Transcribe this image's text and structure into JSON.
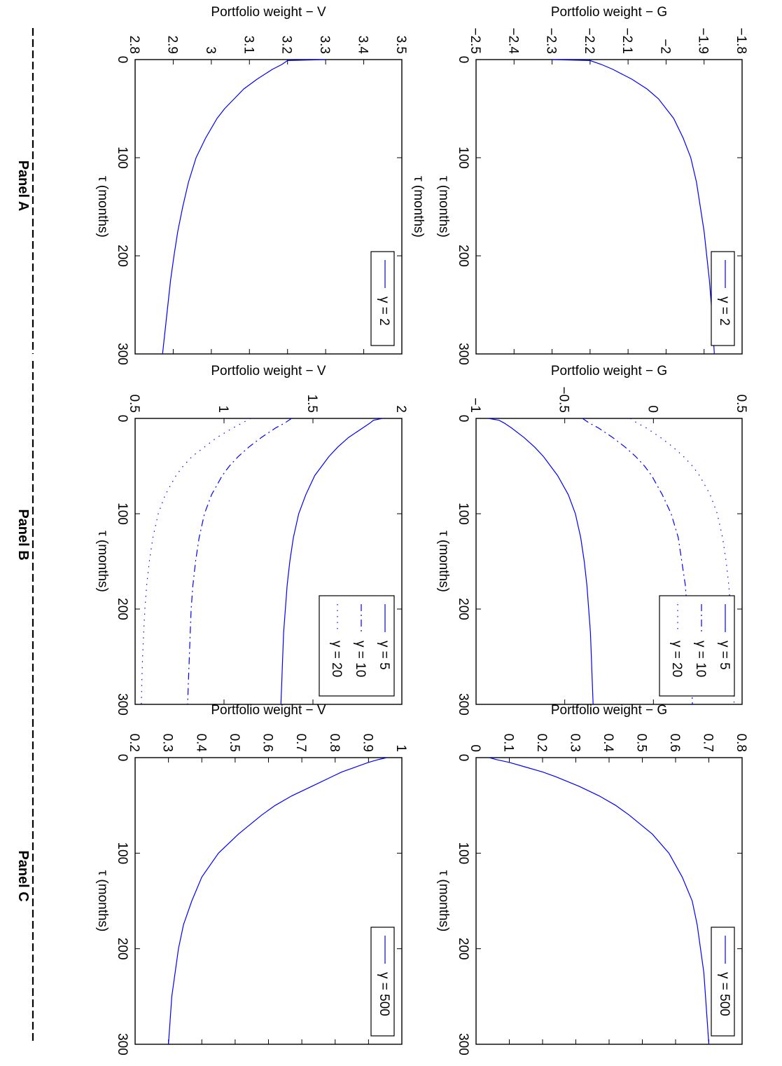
{
  "panel_titles": [
    "Panel A",
    "Panel B",
    "Panel C"
  ],
  "line_color": "#0000ff",
  "chart_data": [
    {
      "id": "A-G",
      "panel": "Panel A",
      "type": "line",
      "xlabel": "τ (months)",
      "ylabel": "Portfolio weight − G",
      "xlim": [
        0,
        300
      ],
      "ylim": [
        -2.5,
        -1.8
      ],
      "xticks": [
        "0",
        "100",
        "200",
        "300"
      ],
      "yticks": [
        "−2.5",
        "−2.4",
        "−2.3",
        "−2.2",
        "−2.1",
        "−2",
        "−1.9",
        "−1.8"
      ],
      "grid": false,
      "legend_position": "top-right",
      "series": [
        {
          "name": "γ = 2",
          "style": "solid",
          "x": [
            0,
            1,
            5,
            10,
            20,
            30,
            40,
            50,
            60,
            80,
            100,
            125,
            150,
            175,
            200,
            225,
            250,
            275,
            300
          ],
          "y": [
            -2.3,
            -2.2,
            -2.17,
            -2.14,
            -2.09,
            -2.05,
            -2.02,
            -2.0,
            -1.98,
            -1.955,
            -1.935,
            -1.92,
            -1.91,
            -1.9,
            -1.893,
            -1.886,
            -1.881,
            -1.877,
            -1.873
          ]
        }
      ]
    },
    {
      "id": "A-V",
      "panel": "Panel A",
      "type": "line",
      "xlabel": "τ (months)",
      "ylabel": "Portfolio weight − V",
      "xlim": [
        0,
        300
      ],
      "ylim": [
        2.8,
        3.5
      ],
      "xticks": [
        "0",
        "100",
        "200",
        "300"
      ],
      "yticks": [
        "2.8",
        "2.9",
        "3",
        "3.1",
        "3.2",
        "3.3",
        "3.4",
        "3.5"
      ],
      "grid": false,
      "legend_position": "top-right",
      "extra_label": "τ (months)",
      "series": [
        {
          "name": "γ = 2",
          "style": "solid",
          "x": [
            0,
            1,
            5,
            10,
            20,
            30,
            40,
            50,
            60,
            80,
            100,
            125,
            150,
            175,
            200,
            225,
            250,
            275,
            300
          ],
          "y": [
            3.3,
            3.2,
            3.185,
            3.16,
            3.12,
            3.085,
            3.06,
            3.035,
            3.015,
            2.985,
            2.96,
            2.94,
            2.925,
            2.912,
            2.902,
            2.893,
            2.886,
            2.879,
            2.872
          ]
        }
      ]
    },
    {
      "id": "B-G",
      "panel": "Panel B",
      "type": "line",
      "xlabel": "τ (months)",
      "ylabel": "Portfolio weight − G",
      "xlim": [
        0,
        300
      ],
      "ylim": [
        -1,
        0.5
      ],
      "xticks": [
        "0",
        "100",
        "200",
        "300"
      ],
      "yticks": [
        "−1",
        "−0.5",
        "0",
        "0.5"
      ],
      "grid": false,
      "legend_position": "top-right",
      "series": [
        {
          "name": "γ = 5",
          "style": "solid",
          "x": [
            0,
            2,
            5,
            10,
            20,
            30,
            40,
            50,
            60,
            80,
            100,
            125,
            150,
            175,
            200,
            225,
            250,
            275,
            300
          ],
          "y": [
            -0.93,
            -0.87,
            -0.84,
            -0.8,
            -0.73,
            -0.67,
            -0.62,
            -0.58,
            -0.54,
            -0.48,
            -0.44,
            -0.41,
            -0.39,
            -0.375,
            -0.365,
            -0.355,
            -0.35,
            -0.345,
            -0.34
          ]
        },
        {
          "name": "γ = 10",
          "style": "dashdot",
          "x": [
            0,
            5,
            10,
            20,
            30,
            40,
            50,
            60,
            80,
            100,
            125,
            150,
            175,
            200,
            225,
            250,
            275,
            300
          ],
          "y": [
            -0.4,
            -0.36,
            -0.31,
            -0.23,
            -0.16,
            -0.1,
            -0.05,
            -0.01,
            0.05,
            0.1,
            0.14,
            0.16,
            0.18,
            0.19,
            0.2,
            0.21,
            0.215,
            0.22
          ]
        },
        {
          "name": "γ = 20",
          "style": "dotted",
          "x": [
            0,
            5,
            10,
            20,
            30,
            40,
            50,
            60,
            80,
            100,
            125,
            150,
            175,
            200,
            225,
            250,
            275,
            300
          ],
          "y": [
            -0.13,
            -0.09,
            -0.04,
            0.04,
            0.11,
            0.17,
            0.22,
            0.26,
            0.32,
            0.36,
            0.39,
            0.41,
            0.425,
            0.435,
            0.44,
            0.445,
            0.45,
            0.455
          ]
        }
      ]
    },
    {
      "id": "B-V",
      "panel": "Panel B",
      "type": "line",
      "xlabel": "τ (months)",
      "ylabel": "Portfolio weight − V",
      "xlim": [
        0,
        300
      ],
      "ylim": [
        0.5,
        2
      ],
      "xticks": [
        "0",
        "100",
        "200",
        "300"
      ],
      "yticks": [
        "0.5",
        "1",
        "1.5",
        "2"
      ],
      "grid": false,
      "legend_position": "top-right",
      "series": [
        {
          "name": "γ = 5",
          "style": "solid",
          "x": [
            0,
            2,
            5,
            10,
            20,
            30,
            40,
            50,
            60,
            80,
            100,
            125,
            150,
            175,
            200,
            225,
            250,
            275,
            300
          ],
          "y": [
            1.89,
            1.84,
            1.82,
            1.78,
            1.7,
            1.64,
            1.59,
            1.55,
            1.51,
            1.46,
            1.42,
            1.39,
            1.37,
            1.355,
            1.345,
            1.335,
            1.33,
            1.325,
            1.32
          ]
        },
        {
          "name": "γ = 10",
          "style": "dashdot",
          "x": [
            0,
            5,
            10,
            20,
            30,
            40,
            50,
            60,
            80,
            100,
            125,
            150,
            175,
            200,
            225,
            250,
            275,
            300
          ],
          "y": [
            1.38,
            1.34,
            1.29,
            1.21,
            1.14,
            1.08,
            1.03,
            0.99,
            0.93,
            0.89,
            0.86,
            0.84,
            0.825,
            0.815,
            0.81,
            0.805,
            0.8,
            0.795
          ]
        },
        {
          "name": "γ = 20",
          "style": "dotted",
          "x": [
            0,
            5,
            10,
            20,
            30,
            40,
            50,
            60,
            80,
            100,
            125,
            150,
            175,
            200,
            225,
            250,
            275,
            300
          ],
          "y": [
            1.15,
            1.1,
            1.05,
            0.96,
            0.89,
            0.82,
            0.77,
            0.73,
            0.67,
            0.63,
            0.6,
            0.58,
            0.565,
            0.555,
            0.548,
            0.542,
            0.538,
            0.535
          ]
        }
      ]
    },
    {
      "id": "C-G",
      "panel": "Panel C",
      "type": "line",
      "xlabel": "τ (months)",
      "ylabel": "Portfolio weight − G",
      "xlim": [
        0,
        300
      ],
      "ylim": [
        0,
        0.8
      ],
      "xticks": [
        "0",
        "100",
        "200",
        "300"
      ],
      "yticks": [
        "0",
        "0.1",
        "0.2",
        "0.3",
        "0.4",
        "0.5",
        "0.6",
        "0.7",
        "0.8"
      ],
      "grid": false,
      "legend_position": "top-right",
      "series": [
        {
          "name": "γ = 500",
          "style": "solid",
          "x": [
            0,
            2,
            5,
            10,
            15,
            20,
            30,
            40,
            50,
            60,
            80,
            100,
            125,
            150,
            175,
            200,
            225,
            250,
            275,
            300
          ],
          "y": [
            0.04,
            0.06,
            0.1,
            0.15,
            0.2,
            0.24,
            0.31,
            0.37,
            0.42,
            0.46,
            0.53,
            0.58,
            0.62,
            0.65,
            0.665,
            0.675,
            0.685,
            0.69,
            0.695,
            0.7
          ]
        }
      ]
    },
    {
      "id": "C-V",
      "panel": "Panel C",
      "type": "line",
      "xlabel": "τ (months)",
      "ylabel": "Portfolio weight − V",
      "xlim": [
        0,
        300
      ],
      "ylim": [
        0.2,
        1
      ],
      "xticks": [
        "0",
        "100",
        "200",
        "300"
      ],
      "yticks": [
        "0.2",
        "0.3",
        "0.4",
        "0.5",
        "0.6",
        "0.7",
        "0.8",
        "0.9",
        "1"
      ],
      "grid": false,
      "legend_position": "top-right",
      "series": [
        {
          "name": "γ = 500",
          "style": "solid",
          "x": [
            0,
            2,
            5,
            10,
            15,
            20,
            30,
            40,
            50,
            60,
            80,
            100,
            125,
            150,
            175,
            200,
            225,
            250,
            275,
            300
          ],
          "y": [
            0.955,
            0.93,
            0.9,
            0.86,
            0.82,
            0.79,
            0.73,
            0.67,
            0.62,
            0.58,
            0.51,
            0.45,
            0.4,
            0.37,
            0.345,
            0.33,
            0.32,
            0.31,
            0.305,
            0.3
          ]
        }
      ]
    }
  ]
}
